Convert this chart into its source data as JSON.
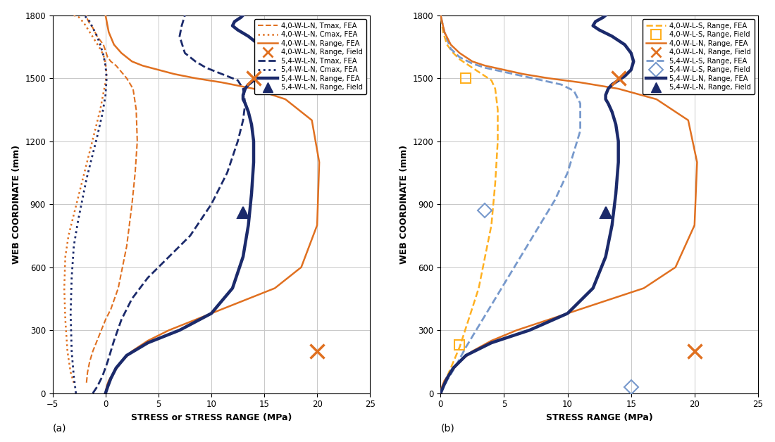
{
  "panel_a": {
    "xlabel": "STRESS or STRESS RANGE (MPa)",
    "ylabel": "WEB COORDINATE (mm)",
    "label": "(a)",
    "xlim": [
      -5,
      25
    ],
    "ylim": [
      0,
      1800
    ],
    "xticks": [
      -5,
      0,
      5,
      10,
      15,
      20,
      25
    ],
    "yticks": [
      0,
      300,
      600,
      900,
      1200,
      1500,
      1800
    ],
    "series": [
      {
        "key": "4WLN_tmax",
        "x": [
          -1.8,
          -1.7,
          -1.5,
          -1.2,
          -0.8,
          -0.4,
          0.0,
          0.5,
          1.2,
          2.0,
          2.5,
          2.8,
          3.0,
          2.9,
          2.6,
          2.0,
          1.5,
          1.0,
          0.5,
          0.2,
          0.0,
          -0.2,
          -0.5,
          -0.8,
          -1.0,
          -1.2,
          -1.5,
          -1.7,
          -1.8
        ],
        "y": [
          50,
          100,
          150,
          200,
          250,
          300,
          350,
          400,
          500,
          700,
          900,
          1050,
          1200,
          1350,
          1450,
          1500,
          1530,
          1560,
          1580,
          1600,
          1630,
          1660,
          1680,
          1700,
          1720,
          1740,
          1760,
          1780,
          1800
        ],
        "color": "#E07020",
        "ls": "--",
        "lw": 1.5,
        "zorder": 3
      },
      {
        "key": "4WLN_cmax",
        "x": [
          -3.0,
          -3.3,
          -3.6,
          -3.8,
          -3.9,
          -3.8,
          -3.5,
          -3.0,
          -2.5,
          -2.0,
          -1.5,
          -1.0,
          -0.5,
          -0.2,
          0.0,
          0.1,
          0.0,
          -0.2,
          -0.5,
          -1.0,
          -1.5,
          -2.0,
          -2.5,
          -3.0
        ],
        "y": [
          50,
          100,
          200,
          350,
          500,
          650,
          750,
          850,
          950,
          1050,
          1150,
          1250,
          1350,
          1430,
          1480,
          1520,
          1570,
          1610,
          1640,
          1680,
          1720,
          1760,
          1790,
          1800
        ],
        "color": "#E07020",
        "ls": ":",
        "lw": 1.8,
        "zorder": 3
      },
      {
        "key": "4WLN_range",
        "x": [
          0.0,
          0.1,
          0.3,
          0.8,
          1.5,
          2.5,
          4.0,
          6.0,
          8.5,
          11.0,
          13.5,
          16.0,
          18.5,
          20.0,
          20.2,
          19.5,
          17.0,
          14.0,
          11.0,
          8.5,
          6.5,
          5.0,
          3.5,
          2.5,
          1.5,
          0.8,
          0.3,
          0.0
        ],
        "y": [
          0,
          30,
          60,
          100,
          150,
          200,
          250,
          300,
          350,
          400,
          450,
          500,
          600,
          800,
          1100,
          1300,
          1400,
          1450,
          1480,
          1500,
          1520,
          1540,
          1560,
          1580,
          1620,
          1660,
          1720,
          1800
        ],
        "color": "#E07020",
        "ls": "-",
        "lw": 1.8,
        "zorder": 4
      },
      {
        "key": "4WLN_range_field",
        "x": [
          20.0,
          14.0
        ],
        "y": [
          200,
          1500
        ],
        "color": "#E07020",
        "marker": "x",
        "ms": 14,
        "mew": 2.5,
        "ls": "none",
        "zorder": 6
      },
      {
        "key": "54WLN_tmax",
        "x": [
          -1.2,
          -0.8,
          -0.3,
          0.2,
          0.8,
          1.5,
          2.5,
          4.0,
          6.0,
          8.0,
          10.0,
          11.5,
          12.5,
          13.0,
          13.2,
          13.0,
          12.5,
          11.5,
          10.5,
          9.5,
          8.5,
          7.5,
          7.0,
          7.2,
          7.5
        ],
        "y": [
          0,
          30,
          80,
          150,
          250,
          350,
          450,
          550,
          650,
          750,
          900,
          1050,
          1200,
          1300,
          1380,
          1450,
          1490,
          1510,
          1530,
          1550,
          1580,
          1620,
          1700,
          1750,
          1800
        ],
        "color": "#1B2A6B",
        "ls": "--",
        "lw": 2.0,
        "zorder": 3
      },
      {
        "key": "54WLN_cmax",
        "x": [
          -2.8,
          -3.0,
          -3.2,
          -3.3,
          -3.2,
          -3.0,
          -2.6,
          -2.2,
          -1.8,
          -1.3,
          -0.8,
          -0.3,
          0.0,
          0.1,
          0.0,
          -0.2,
          -0.5,
          -0.8,
          -1.2,
          -1.5,
          -2.0
        ],
        "y": [
          0,
          80,
          200,
          380,
          550,
          700,
          820,
          920,
          1020,
          1120,
          1220,
          1330,
          1420,
          1500,
          1560,
          1610,
          1660,
          1700,
          1740,
          1770,
          1800
        ],
        "color": "#1B2A6B",
        "ls": ":",
        "lw": 2.0,
        "zorder": 3
      },
      {
        "key": "54WLN_range",
        "x": [
          0.0,
          0.2,
          0.5,
          1.0,
          2.0,
          4.0,
          7.0,
          10.0,
          12.0,
          13.0,
          13.5,
          13.8,
          14.0,
          14.0,
          13.8,
          13.5,
          13.2,
          13.0,
          13.0,
          13.2,
          13.5,
          14.0,
          14.5,
          15.0,
          15.2,
          15.0,
          14.5,
          13.5,
          12.5,
          12.0,
          12.2,
          12.8,
          13.0
        ],
        "y": [
          0,
          30,
          70,
          120,
          180,
          240,
          300,
          380,
          500,
          650,
          800,
          950,
          1100,
          1200,
          1280,
          1340,
          1380,
          1400,
          1420,
          1450,
          1470,
          1490,
          1510,
          1540,
          1580,
          1620,
          1660,
          1700,
          1730,
          1750,
          1770,
          1790,
          1800
        ],
        "color": "#1B2A6B",
        "ls": "-",
        "lw": 3.2,
        "zorder": 5
      },
      {
        "key": "54WLN_range_field",
        "x": [
          13.0
        ],
        "y": [
          860
        ],
        "color": "#1B2A6B",
        "marker": "^",
        "ms": 12,
        "ls": "none",
        "mfc": "#1B2A6B",
        "zorder": 6
      }
    ],
    "legend": [
      {
        "label": "4,0-W-L-N, Tmax, FEA",
        "color": "#E07020",
        "ls": "--",
        "lw": 1.5,
        "marker": "none"
      },
      {
        "label": "4,0-W-L-N, Cmax, FEA",
        "color": "#E07020",
        "ls": ":",
        "lw": 1.8,
        "marker": "none"
      },
      {
        "label": "4,0-W-L-N, Range, FEA",
        "color": "#E07020",
        "ls": "-",
        "lw": 1.8,
        "marker": "none"
      },
      {
        "label": "4,0-W-L-N, Range, Field",
        "color": "#E07020",
        "ls": "none",
        "marker": "x",
        "ms": 10,
        "mew": 2.0
      },
      {
        "label": "5,4-W-L-N, Tmax, FEA",
        "color": "#1B2A6B",
        "ls": "--",
        "lw": 2.0,
        "marker": "none"
      },
      {
        "label": "5,4-W-L-N, Cmax, FEA",
        "color": "#1B2A6B",
        "ls": ":",
        "lw": 2.0,
        "marker": "none"
      },
      {
        "label": "5,4-W-L-N, Range, FEA",
        "color": "#1B2A6B",
        "ls": "-",
        "lw": 3.2,
        "marker": "none"
      },
      {
        "label": "5,4-W-L-N, Range, Field",
        "color": "#1B2A6B",
        "ls": "none",
        "marker": "^",
        "ms": 10,
        "mfc": "#1B2A6B"
      }
    ]
  },
  "panel_b": {
    "xlabel": "STRESS RANGE (MPa)",
    "ylabel": "WEB COORDINATE (mm)",
    "label": "(b)",
    "xlim": [
      0,
      25
    ],
    "ylim": [
      0,
      1800
    ],
    "xticks": [
      0,
      5,
      10,
      15,
      20,
      25
    ],
    "yticks": [
      0,
      300,
      600,
      900,
      1200,
      1500,
      1800
    ],
    "series": [
      {
        "key": "4WLS_range",
        "x": [
          0.0,
          0.3,
          0.8,
          1.5,
          2.2,
          3.0,
          3.5,
          4.0,
          4.3,
          4.5,
          4.5,
          4.3,
          4.0,
          3.5,
          3.0,
          2.5,
          2.0,
          1.5,
          1.0,
          0.5,
          0.2,
          0.0
        ],
        "y": [
          0,
          50,
          120,
          220,
          350,
          500,
          650,
          800,
          1000,
          1200,
          1350,
          1450,
          1490,
          1510,
          1530,
          1550,
          1570,
          1590,
          1620,
          1660,
          1720,
          1800
        ],
        "color": "#FFB020",
        "ls": "--",
        "lw": 1.8,
        "zorder": 3
      },
      {
        "key": "4WLS_range_field",
        "x": [
          1.5,
          2.0
        ],
        "y": [
          230,
          1500
        ],
        "color": "#FFB020",
        "marker": "s",
        "ms": 10,
        "mew": 1.5,
        "ls": "none",
        "mfc": "none",
        "zorder": 6
      },
      {
        "key": "4WLN_range",
        "x": [
          0.0,
          0.1,
          0.3,
          0.8,
          1.5,
          2.5,
          4.0,
          6.0,
          8.5,
          11.0,
          13.5,
          16.0,
          18.5,
          20.0,
          20.2,
          19.5,
          17.0,
          14.0,
          11.0,
          8.5,
          6.5,
          5.0,
          3.5,
          2.5,
          1.5,
          0.8,
          0.3,
          0.0
        ],
        "y": [
          0,
          30,
          60,
          100,
          150,
          200,
          250,
          300,
          350,
          400,
          450,
          500,
          600,
          800,
          1100,
          1300,
          1400,
          1450,
          1480,
          1500,
          1520,
          1540,
          1560,
          1580,
          1620,
          1660,
          1720,
          1800
        ],
        "color": "#E07020",
        "ls": "-",
        "lw": 1.8,
        "zorder": 4
      },
      {
        "key": "4WLN_range_field",
        "x": [
          20.0,
          14.0
        ],
        "y": [
          200,
          1500
        ],
        "color": "#E07020",
        "marker": "x",
        "ms": 14,
        "mew": 2.5,
        "ls": "none",
        "zorder": 6
      },
      {
        "key": "54WLS_range",
        "x": [
          0.0,
          0.5,
          1.2,
          2.0,
          3.0,
          4.0,
          5.0,
          6.0,
          7.0,
          8.0,
          9.0,
          10.0,
          10.5,
          11.0,
          11.0,
          10.5,
          9.5,
          8.0,
          6.5,
          5.0,
          3.5,
          2.5,
          1.5,
          0.8,
          0.3,
          0.0
        ],
        "y": [
          0,
          60,
          130,
          220,
          320,
          420,
          520,
          620,
          720,
          820,
          920,
          1050,
          1150,
          1250,
          1380,
          1440,
          1470,
          1490,
          1510,
          1530,
          1550,
          1570,
          1600,
          1640,
          1720,
          1800
        ],
        "color": "#7799CC",
        "ls": "--",
        "lw": 2.0,
        "zorder": 3
      },
      {
        "key": "54WLS_range_field",
        "x": [
          3.5,
          15.0
        ],
        "y": [
          870,
          30
        ],
        "color": "#7799CC",
        "marker": "D",
        "ms": 10,
        "mfc": "none",
        "mew": 1.5,
        "ls": "none",
        "zorder": 6
      },
      {
        "key": "54WLN_range",
        "x": [
          0.0,
          0.2,
          0.5,
          1.0,
          2.0,
          4.0,
          7.0,
          10.0,
          12.0,
          13.0,
          13.5,
          13.8,
          14.0,
          14.0,
          13.8,
          13.5,
          13.2,
          13.0,
          13.0,
          13.2,
          13.5,
          14.0,
          14.5,
          15.0,
          15.2,
          15.0,
          14.5,
          13.5,
          12.5,
          12.0,
          12.2,
          12.8,
          13.0
        ],
        "y": [
          0,
          30,
          70,
          120,
          180,
          240,
          300,
          380,
          500,
          650,
          800,
          950,
          1100,
          1200,
          1280,
          1340,
          1380,
          1400,
          1420,
          1450,
          1470,
          1490,
          1510,
          1540,
          1580,
          1620,
          1660,
          1700,
          1730,
          1750,
          1770,
          1790,
          1800
        ],
        "color": "#1B2A6B",
        "ls": "-",
        "lw": 3.2,
        "zorder": 5
      },
      {
        "key": "54WLN_range_field",
        "x": [
          13.0
        ],
        "y": [
          860
        ],
        "color": "#1B2A6B",
        "marker": "^",
        "ms": 12,
        "ls": "none",
        "mfc": "#1B2A6B",
        "zorder": 6
      }
    ],
    "legend": [
      {
        "label": "4,0-W-L-S, Range, FEA",
        "color": "#FFB020",
        "ls": "--",
        "lw": 1.8,
        "marker": "none"
      },
      {
        "label": "4,0-W-L-S, Range, Field",
        "color": "#FFB020",
        "ls": "none",
        "marker": "s",
        "ms": 10,
        "mfc": "none",
        "mew": 1.5
      },
      {
        "label": "4,0-W-L-N, Range, FEA",
        "color": "#E07020",
        "ls": "-",
        "lw": 1.8,
        "marker": "none"
      },
      {
        "label": "4,0-W-L-N, Range, Field",
        "color": "#E07020",
        "ls": "none",
        "marker": "x",
        "ms": 10,
        "mew": 2.0
      },
      {
        "label": "5,4-W-L-S, Range, FEA",
        "color": "#7799CC",
        "ls": "--",
        "lw": 2.0,
        "marker": "none"
      },
      {
        "label": "5,4-W-L-S, Range, Field",
        "color": "#7799CC",
        "ls": "none",
        "marker": "D",
        "ms": 10,
        "mfc": "none",
        "mew": 1.5
      },
      {
        "label": "5,4-W-L-N, Range, FEA",
        "color": "#1B2A6B",
        "ls": "-",
        "lw": 3.2,
        "marker": "none"
      },
      {
        "label": "5,4-W-L-N, Range, Field",
        "color": "#1B2A6B",
        "ls": "none",
        "marker": "^",
        "ms": 10,
        "mfc": "#1B2A6B"
      }
    ]
  }
}
